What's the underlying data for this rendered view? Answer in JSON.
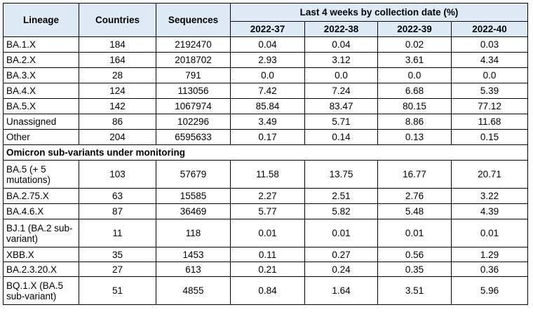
{
  "table": {
    "headers": {
      "lineage": "Lineage",
      "countries": "Countries",
      "sequences": "Sequences",
      "group": "Last 4 weeks by collection date (%)",
      "weeks": [
        "2022-37",
        "2022-38",
        "2022-39",
        "2022-40"
      ]
    },
    "rows": [
      {
        "lineage": "BA.1.X",
        "countries": "184",
        "sequences": "2192470",
        "w": [
          "0.04",
          "0.04",
          "0.02",
          "0.03"
        ]
      },
      {
        "lineage": "BA.2.X",
        "countries": "164",
        "sequences": "2018702",
        "w": [
          "2.93",
          "3.12",
          "3.61",
          "4.34"
        ]
      },
      {
        "lineage": "BA.3.X",
        "countries": "28",
        "sequences": "791",
        "w": [
          "0.0",
          "0.0",
          "0.0",
          "0.0"
        ]
      },
      {
        "lineage": "BA.4.X",
        "countries": "124",
        "sequences": "113056",
        "w": [
          "7.42",
          "7.24",
          "6.68",
          "5.39"
        ]
      },
      {
        "lineage": "BA.5.X",
        "countries": "142",
        "sequences": "1067974",
        "w": [
          "85.84",
          "83.47",
          "80.15",
          "77.12"
        ]
      },
      {
        "lineage": "Unassigned",
        "countries": "86",
        "sequences": "102296",
        "w": [
          "3.49",
          "5.71",
          "8.86",
          "11.68"
        ]
      },
      {
        "lineage": "Other",
        "countries": "204",
        "sequences": "6595633",
        "w": [
          "0.17",
          "0.14",
          "0.13",
          "0.15"
        ]
      }
    ],
    "section_title": "Omicron sub-variants under monitoring",
    "sub_rows": [
      {
        "lineage": "BA.5 (+ 5 mutations)",
        "countries": "103",
        "sequences": "57679",
        "w": [
          "11.58",
          "13.75",
          "16.77",
          "20.71"
        ]
      },
      {
        "lineage": "BA.2.75.X",
        "countries": "63",
        "sequences": "15585",
        "w": [
          "2.27",
          "2.51",
          "2.76",
          "3.22"
        ]
      },
      {
        "lineage": "BA.4.6.X",
        "countries": "87",
        "sequences": "36469",
        "w": [
          "5.77",
          "5.82",
          "5.48",
          "4.39"
        ]
      },
      {
        "lineage": "BJ.1 (BA.2 sub-variant)",
        "countries": "11",
        "sequences": "118",
        "w": [
          "0.01",
          "0.01",
          "0.01",
          "0.01"
        ]
      },
      {
        "lineage": "XBB.X",
        "countries": "35",
        "sequences": "1453",
        "w": [
          "0.11",
          "0.27",
          "0.56",
          "1.29"
        ]
      },
      {
        "lineage": "BA.2.3.20.X",
        "countries": "27",
        "sequences": "613",
        "w": [
          "0.21",
          "0.24",
          "0.35",
          "0.36"
        ]
      },
      {
        "lineage": "BQ.1.X (BA.5 sub-variant)",
        "countries": "51",
        "sequences": "4855",
        "w": [
          "0.84",
          "1.64",
          "3.51",
          "5.96"
        ]
      }
    ]
  }
}
